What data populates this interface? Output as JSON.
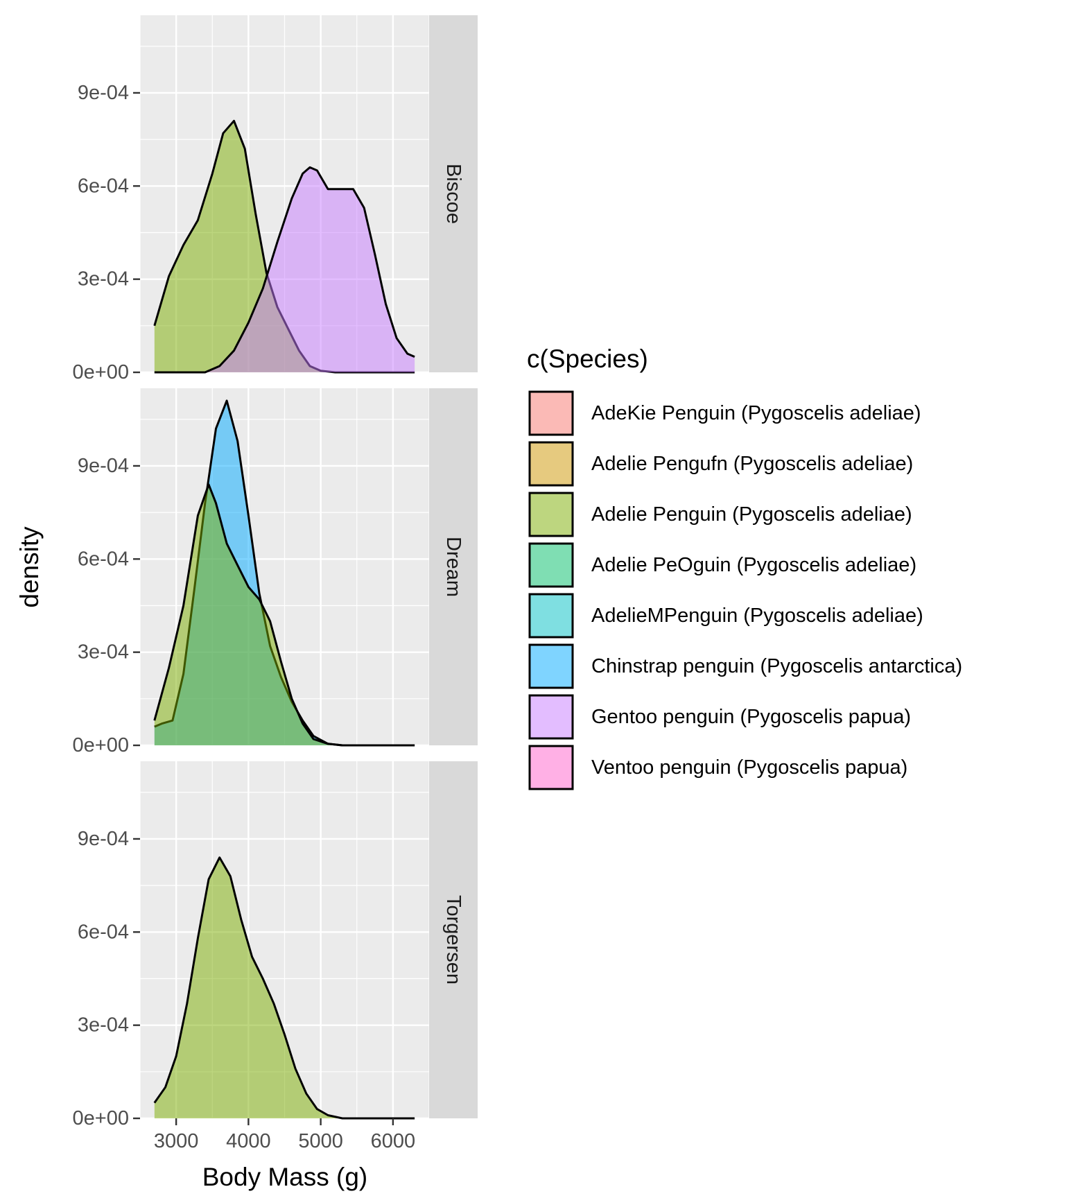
{
  "chart_data": {
    "type": "area",
    "xlabel": "Body Mass (g)",
    "ylabel": "density",
    "xlim": [
      2500,
      6500
    ],
    "ylim": [
      0,
      0.00115
    ],
    "x_ticks": [
      3000,
      4000,
      5000,
      6000
    ],
    "x_tick_labels": [
      "3000",
      "4000",
      "5000",
      "6000"
    ],
    "y_ticks": [
      0,
      0.0003,
      0.0006,
      0.0009
    ],
    "y_tick_labels": [
      "0e+00",
      "3e-04",
      "6e-04",
      "9e-04"
    ],
    "grid": true,
    "legend_position": "right",
    "legend": {
      "title": "c(Species)",
      "entries": [
        {
          "label": "AdeKie Penguin (Pygoscelis adeliae)",
          "color": "#F8766D"
        },
        {
          "label": "Adelie Pengufn (Pygoscelis adeliae)",
          "color": "#CD9600"
        },
        {
          "label": "Adelie Penguin (Pygoscelis adeliae)",
          "color": "#7CAE00"
        },
        {
          "label": "Adelie PeOguin (Pygoscelis adeliae)",
          "color": "#00BE67"
        },
        {
          "label": "AdelieMPenguin (Pygoscelis adeliae)",
          "color": "#00BFC4"
        },
        {
          "label": "Chinstrap penguin (Pygoscelis antarctica)",
          "color": "#00A9FF"
        },
        {
          "label": "Gentoo penguin (Pygoscelis papua)",
          "color": "#C77CFF"
        },
        {
          "label": "Ventoo penguin (Pygoscelis papua)",
          "color": "#FF61CC"
        }
      ]
    },
    "panels": [
      {
        "label": "Biscoe",
        "series": [
          {
            "legend_index": 2,
            "x": [
              2700,
              2900,
              3100,
              3300,
              3500,
              3650,
              3800,
              3950,
              4100,
              4250,
              4400,
              4550,
              4700,
              4850,
              5000,
              5200,
              6300
            ],
            "y": [
              0.00015,
              0.00031,
              0.00041,
              0.00049,
              0.00064,
              0.00077,
              0.00081,
              0.00072,
              0.00051,
              0.00032,
              0.00021,
              0.00014,
              7e-05,
              2e-05,
              5e-06,
              0.0,
              0.0
            ]
          },
          {
            "legend_index": 6,
            "x": [
              2700,
              3400,
              3600,
              3800,
              4000,
              4200,
              4400,
              4600,
              4750,
              4850,
              4950,
              5100,
              5250,
              5450,
              5600,
              5750,
              5900,
              6050,
              6200,
              6300
            ],
            "y": [
              0.0,
              0.0,
              2e-05,
              7e-05,
              0.00016,
              0.00027,
              0.00042,
              0.00056,
              0.00064,
              0.00066,
              0.00065,
              0.00059,
              0.00059,
              0.00059,
              0.00053,
              0.00038,
              0.00022,
              0.00011,
              6e-05,
              5e-05
            ]
          }
        ]
      },
      {
        "label": "Dream",
        "series": [
          {
            "legend_index": 5,
            "x": [
              2700,
              2800,
              2950,
              3100,
              3250,
              3400,
              3550,
              3700,
              3850,
              4000,
              4150,
              4300,
              4450,
              4600,
              4750,
              4900,
              5100,
              5300,
              6300
            ],
            "y": [
              6e-05,
              7e-05,
              8e-05,
              0.00023,
              0.0005,
              0.00078,
              0.00102,
              0.00111,
              0.00098,
              0.00074,
              0.00049,
              0.00032,
              0.00022,
              0.00014,
              8e-05,
              3e-05,
              5e-06,
              0.0,
              0.0
            ]
          },
          {
            "legend_index": 2,
            "x": [
              2700,
              2900,
              3100,
              3300,
              3450,
              3550,
              3700,
              3850,
              4000,
              4150,
              4300,
              4450,
              4600,
              4750,
              4900,
              5100,
              5300,
              6300
            ],
            "y": [
              8e-05,
              0.00025,
              0.00045,
              0.00074,
              0.00084,
              0.00078,
              0.00065,
              0.00058,
              0.00051,
              0.00047,
              0.0004,
              0.00027,
              0.00015,
              7e-05,
              2e-05,
              5e-06,
              0.0,
              0.0
            ]
          }
        ]
      },
      {
        "label": "Torgersen",
        "series": [
          {
            "legend_index": 2,
            "x": [
              2700,
              2850,
              3000,
              3150,
              3300,
              3450,
              3600,
              3750,
              3900,
              4050,
              4200,
              4350,
              4500,
              4650,
              4800,
              4950,
              5100,
              5300,
              6300
            ],
            "y": [
              5e-05,
              0.0001,
              0.0002,
              0.00037,
              0.00058,
              0.00077,
              0.00084,
              0.00078,
              0.00064,
              0.00052,
              0.00045,
              0.00037,
              0.00027,
              0.00016,
              8e-05,
              3e-05,
              1e-05,
              0.0,
              0.0
            ]
          }
        ]
      }
    ]
  }
}
